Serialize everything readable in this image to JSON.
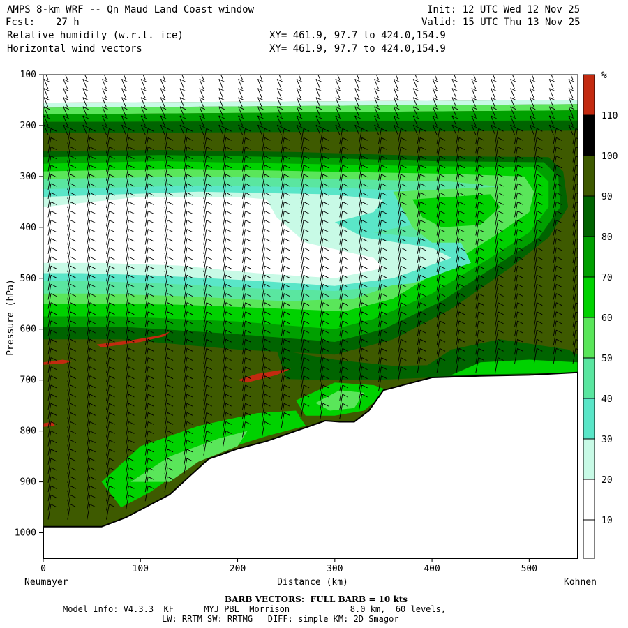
{
  "header": {
    "title": "AMPS 8-km WRF -- Qn Maud Land Coast window",
    "forecast_label": "Fcst:",
    "forecast_value": "27 h",
    "field1": "Relative humidity (w.r.t. ice)",
    "field2": "Horizontal wind vectors",
    "xy1": "XY= 461.9, 97.7 to 424.0,154.9",
    "xy2": "XY= 461.9, 97.7 to 424.0,154.9",
    "init": "Init: 12 UTC Wed 12 Nov 25",
    "valid": "Valid: 15 UTC Thu 13 Nov 25"
  },
  "footer": {
    "barb_note": "BARB VECTORS:  FULL BARB = 10 kts",
    "model_line1": "Model Info: V4.3.3  KF      MYJ PBL  Morrison            8.0 km,  60 levels,",
    "model_line2": "LW: RRTM SW: RRTMG   DIFF: simple KM: 2D Smagor"
  },
  "colors": {
    "c110": "#c32a10",
    "c100": "#3e5a00",
    "c90": "#006400",
    "c80": "#00a000",
    "c70": "#00d200",
    "c60": "#5ae65a",
    "c50": "#5ae6a0",
    "c40": "#5ae6c8",
    "c30": "#c8fae6",
    "c20": "#ffffff",
    "c10": "#ffffff",
    "terrain": "#ffffff"
  },
  "chart_data": {
    "type": "heatmap",
    "xlabel": "Distance (km)",
    "ylabel": "Pressure (hPa)",
    "x_left_label": "Neumayer",
    "x_right_label": "Kohnen",
    "xlim": [
      0,
      550
    ],
    "ylim": [
      1050,
      100
    ],
    "x_ticks": [
      0,
      100,
      200,
      300,
      400,
      500
    ],
    "y_ticks": [
      100,
      200,
      300,
      400,
      500,
      600,
      700,
      800,
      900,
      1000
    ],
    "colorbar_unit": "%",
    "colorbar_levels": [
      10,
      20,
      30,
      40,
      50,
      60,
      70,
      80,
      90,
      100,
      110
    ],
    "terrain_surface": {
      "x": [
        0,
        60,
        85,
        110,
        130,
        150,
        170,
        200,
        230,
        260,
        290,
        305,
        320,
        335,
        350,
        380,
        400,
        450,
        500,
        550
      ],
      "p": [
        988,
        988,
        970,
        945,
        925,
        890,
        855,
        835,
        820,
        800,
        780,
        782,
        782,
        760,
        720,
        705,
        695,
        692,
        690,
        685
      ]
    }
  }
}
